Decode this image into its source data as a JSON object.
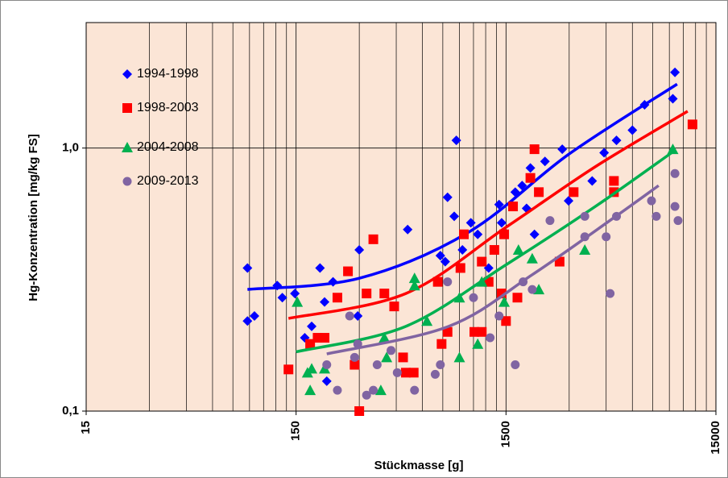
{
  "chart_data": {
    "type": "scatter",
    "x_label": "Stückmasse [g]",
    "y_label": "Hg-Konzentration [mg/kg FS]",
    "xlog": true,
    "ylog": true,
    "xlim": [
      15,
      15000
    ],
    "ylim": [
      0.1,
      3.0
    ],
    "xticks": [
      15,
      150,
      1500,
      15000
    ],
    "xminor": [
      30,
      45,
      60,
      75,
      90,
      105,
      120,
      135,
      300,
      450,
      600,
      750,
      900,
      1050,
      1200,
      1350,
      3000,
      4500,
      6000,
      7500,
      9000,
      10500,
      12000,
      13500
    ],
    "yticks": [
      {
        "value": 0.1,
        "label": "0,1"
      },
      {
        "value": 1,
        "label": "1,0"
      }
    ],
    "plot_background": "#fbe5d6",
    "grid": true,
    "legend": "upper-left",
    "series": [
      {
        "name": "1994-1998",
        "color": "#0000ff",
        "marker": "diamond",
        "x": [
          88,
          88,
          95,
          122,
          129,
          148,
          165,
          178,
          195,
          205,
          225,
          210,
          300,
          295,
          510,
          730,
          770,
          790,
          850,
          870,
          930,
          1020,
          1100,
          1240,
          1390,
          1430,
          1660,
          1790,
          1880,
          1960,
          2050,
          2300,
          2780,
          3860,
          4400,
          5040,
          6000,
          6860,
          9350,
          9570,
          2980
        ],
        "values": [
          0.35,
          0.22,
          0.23,
          0.3,
          0.27,
          0.28,
          0.19,
          0.21,
          0.35,
          0.26,
          0.31,
          0.13,
          0.41,
          0.23,
          0.49,
          0.39,
          0.37,
          0.65,
          0.55,
          1.07,
          0.41,
          0.52,
          0.47,
          0.35,
          0.61,
          0.52,
          0.68,
          0.72,
          0.59,
          0.84,
          0.47,
          0.89,
          0.99,
          0.75,
          0.96,
          1.07,
          1.17,
          1.46,
          1.54,
          1.94,
          0.63
        ],
        "trend": {
          "x": [
            88,
            300,
            1000,
            3000,
            9800
          ],
          "values": [
            0.29,
            0.32,
            0.48,
            0.95,
            1.75
          ]
        }
      },
      {
        "name": "1998-2003",
        "color": "#ff0000",
        "marker": "square",
        "x": [
          138,
          175,
          190,
          205,
          236,
          265,
          285,
          325,
          350,
          300,
          395,
          440,
          485,
          500,
          545,
          710,
          740,
          790,
          910,
          945,
          1060,
          1150,
          1150,
          1240,
          1320,
          1430,
          1470,
          1500,
          1620,
          1700,
          1960,
          2050,
          2150,
          2700,
          3150,
          4900,
          4900,
          11600
        ],
        "values": [
          0.144,
          0.18,
          0.19,
          0.19,
          0.27,
          0.34,
          0.15,
          0.28,
          0.45,
          0.1,
          0.28,
          0.25,
          0.16,
          0.14,
          0.14,
          0.31,
          0.18,
          0.2,
          0.35,
          0.47,
          0.2,
          0.2,
          0.37,
          0.31,
          0.41,
          0.28,
          0.47,
          0.22,
          0.6,
          0.27,
          0.77,
          0.99,
          0.68,
          0.37,
          0.68,
          0.68,
          0.75,
          1.23
        ],
        "trend": {
          "x": [
            138,
            500,
            1500,
            4000,
            11000
          ],
          "values": [
            0.225,
            0.28,
            0.5,
            0.85,
            1.38
          ]
        }
      },
      {
        "name": "2004-2008",
        "color": "#00b050",
        "marker": "triangle",
        "x": [
          152,
          170,
          175,
          178,
          205,
          380,
          395,
          405,
          550,
          550,
          630,
          900,
          900,
          1100,
          1150,
          1470,
          1720,
          2000,
          2150,
          3560,
          9350
        ],
        "values": [
          0.26,
          0.14,
          0.12,
          0.145,
          0.145,
          0.12,
          0.19,
          0.16,
          0.32,
          0.3,
          0.22,
          0.16,
          0.27,
          0.18,
          0.31,
          0.26,
          0.41,
          0.38,
          0.29,
          0.41,
          0.99
        ],
        "trend": {
          "x": [
            150,
            500,
            1500,
            4000,
            9400
          ],
          "values": [
            0.168,
            0.21,
            0.36,
            0.6,
            0.97
          ]
        }
      },
      {
        "name": "2009-2013",
        "color": "#8064a2",
        "marker": "circle",
        "x": [
          210,
          236,
          270,
          285,
          295,
          325,
          350,
          365,
          425,
          455,
          550,
          690,
          730,
          790,
          1050,
          1260,
          1390,
          1660,
          1810,
          2000,
          2430,
          3560,
          3560,
          4500,
          4700,
          5040,
          7400,
          7800,
          9570,
          9570,
          9900
        ],
        "values": [
          0.15,
          0.12,
          0.23,
          0.16,
          0.18,
          0.115,
          0.12,
          0.15,
          0.17,
          0.14,
          0.12,
          0.138,
          0.15,
          0.31,
          0.27,
          0.19,
          0.23,
          0.15,
          0.31,
          0.29,
          0.53,
          0.46,
          0.55,
          0.46,
          0.28,
          0.55,
          0.63,
          0.55,
          0.8,
          0.6,
          0.53
        ],
        "trend": {
          "x": [
            210,
            800,
            2000,
            5000,
            8000
          ],
          "values": [
            0.165,
            0.21,
            0.33,
            0.55,
            0.72
          ]
        }
      }
    ]
  }
}
